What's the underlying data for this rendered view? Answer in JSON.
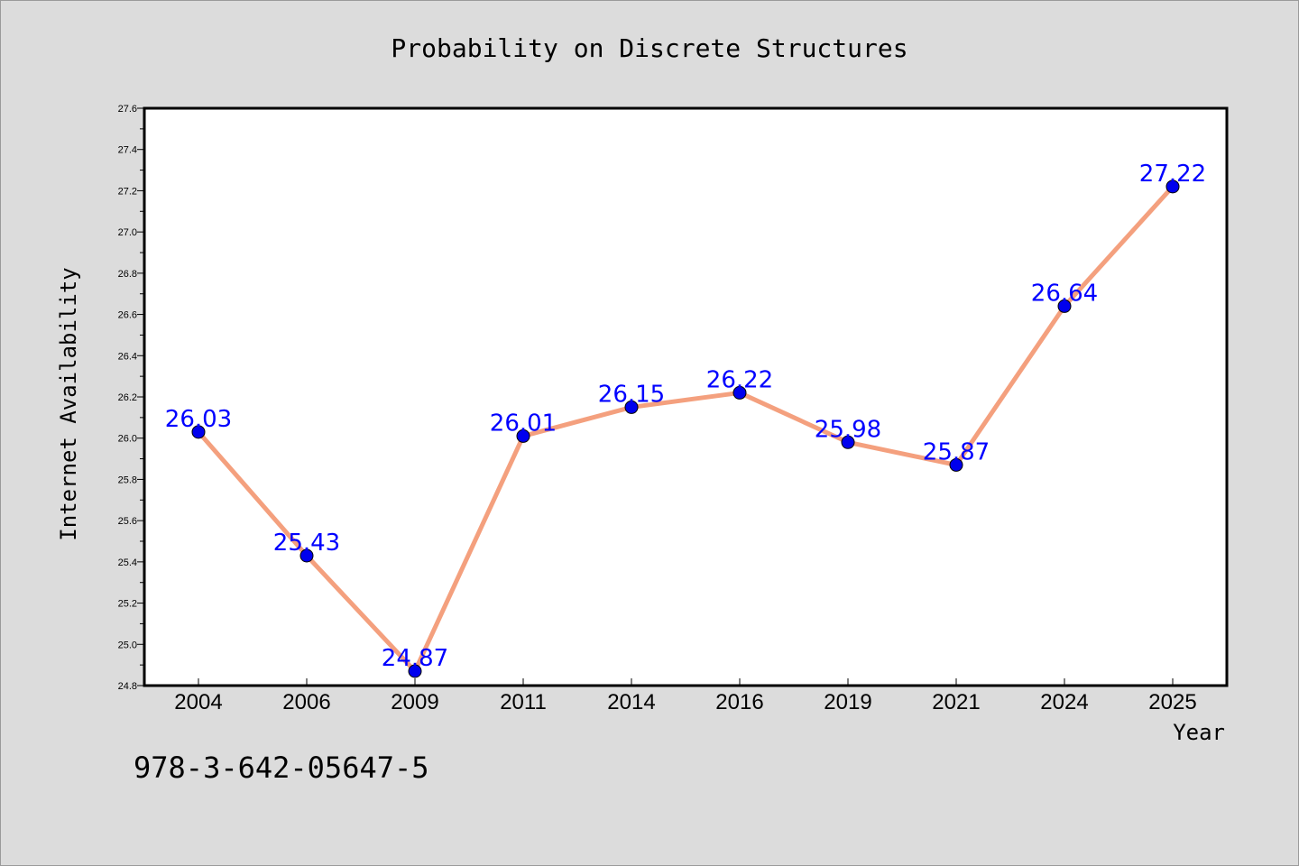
{
  "chart_data": {
    "type": "line",
    "title": "Probability on Discrete Structures",
    "xlabel": "Year",
    "ylabel": "Internet Availability",
    "categories": [
      "2004",
      "2006",
      "2009",
      "2011",
      "2014",
      "2016",
      "2019",
      "2021",
      "2024",
      "2025"
    ],
    "series": [
      {
        "values": [
          26.03,
          25.43,
          24.87,
          26.01,
          26.15,
          26.22,
          25.98,
          25.87,
          26.64,
          27.22
        ],
        "data_labels": [
          "26.03",
          "25.43",
          "24.87",
          "26.01",
          "26.15",
          "26.22",
          "25.98",
          "25.87",
          "26.64",
          "27.22"
        ]
      }
    ],
    "ylim": [
      24.8,
      27.6
    ],
    "yticks": [
      "24.8",
      "25.0",
      "25.2",
      "25.4",
      "25.6",
      "25.8",
      "26.0",
      "26.2",
      "26.4",
      "26.6",
      "26.8",
      "27.0",
      "27.2",
      "27.4",
      "27.6"
    ],
    "grid": false,
    "legend": "none",
    "colors": {
      "line": "#f4a07e",
      "marker": "#0000ee",
      "data_label": "#0000ff",
      "background": "#dcdcdc",
      "plot_background": "#ffffff"
    }
  },
  "footer": {
    "isbn": "978-3-642-05647-5"
  }
}
